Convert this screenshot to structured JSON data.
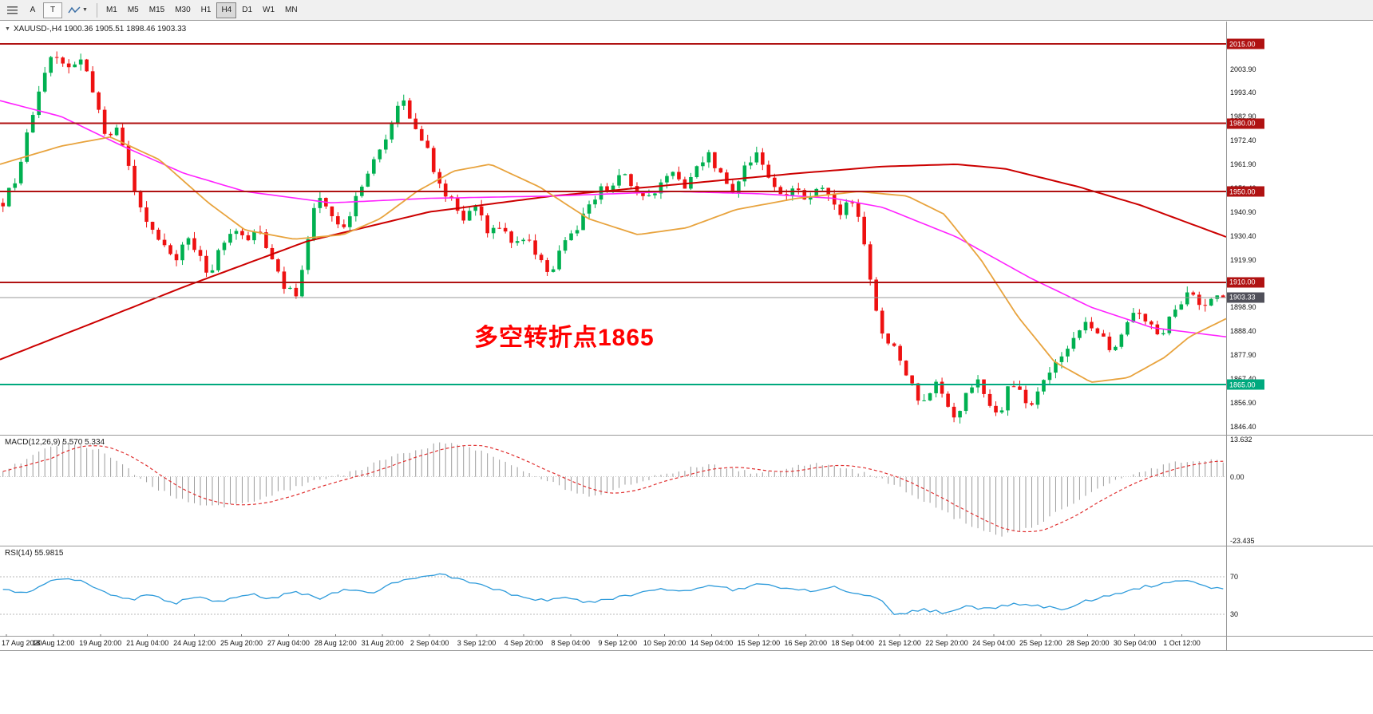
{
  "toolbar": {
    "tool_a": "A",
    "tool_t": "T",
    "timeframes": [
      "M1",
      "M5",
      "M15",
      "M30",
      "H1",
      "H4",
      "D1",
      "W1",
      "MN"
    ],
    "selected_timeframe": "H4"
  },
  "chart": {
    "title": "XAUUSD-,H4 1900.36 1905.51 1898.46 1903.33",
    "symbol_dropdown_icon": "▼",
    "annotation": {
      "text": "多空转折点1865",
      "color": "#ff0000"
    }
  },
  "chart_data": {
    "type": "candlestick",
    "symbol": "XAUUSD",
    "timeframe": "H4",
    "last_ohlc": {
      "open": 1900.36,
      "high": 1905.51,
      "low": 1898.46,
      "close": 1903.33
    },
    "ylim": [
      1843,
      2025
    ],
    "bar_count": 205,
    "up_color": "#00b050",
    "down_color": "#ee1111",
    "price_ticks": [
      "2003.90",
      "1993.40",
      "1982.90",
      "1972.40",
      "1961.90",
      "1951.40",
      "1940.90",
      "1930.40",
      "1919.90",
      "1909.40",
      "1898.90",
      "1888.40",
      "1877.90",
      "1867.40",
      "1856.90",
      "1846.40"
    ],
    "hlines": [
      {
        "price": 2015.0,
        "label": "2015.00",
        "color": "#b01212"
      },
      {
        "price": 1980.0,
        "label": "1980.00",
        "color": "#b01212"
      },
      {
        "price": 1950.0,
        "label": "1950.00",
        "color": "#b01212"
      },
      {
        "price": 1910.0,
        "label": "1910.00",
        "color": "#b01212"
      },
      {
        "price": 1865.0,
        "label": "1865.00",
        "color": "#00a97e"
      }
    ],
    "current_price": {
      "value": 1903.33,
      "label": "1903.33",
      "line_color": "#999999",
      "box_color": "#50505a"
    },
    "price_anchors": [
      [
        0,
        1945
      ],
      [
        0.01,
        1955
      ],
      [
        0.025,
        1985
      ],
      [
        0.04,
        2010
      ],
      [
        0.055,
        2005
      ],
      [
        0.065,
        2008
      ],
      [
        0.075,
        1992
      ],
      [
        0.085,
        1972
      ],
      [
        0.095,
        1978
      ],
      [
        0.105,
        1955
      ],
      [
        0.115,
        1938
      ],
      [
        0.13,
        1928
      ],
      [
        0.14,
        1918
      ],
      [
        0.15,
        1930
      ],
      [
        0.16,
        1922
      ],
      [
        0.17,
        1913
      ],
      [
        0.18,
        1928
      ],
      [
        0.19,
        1935
      ],
      [
        0.2,
        1928
      ],
      [
        0.21,
        1933
      ],
      [
        0.22,
        1920
      ],
      [
        0.23,
        1908
      ],
      [
        0.24,
        1904
      ],
      [
        0.25,
        1930
      ],
      [
        0.258,
        1950
      ],
      [
        0.268,
        1942
      ],
      [
        0.278,
        1932
      ],
      [
        0.288,
        1945
      ],
      [
        0.298,
        1958
      ],
      [
        0.308,
        1966
      ],
      [
        0.316,
        1975
      ],
      [
        0.324,
        1990
      ],
      [
        0.33,
        1988
      ],
      [
        0.338,
        1978
      ],
      [
        0.348,
        1968
      ],
      [
        0.358,
        1952
      ],
      [
        0.368,
        1945
      ],
      [
        0.378,
        1938
      ],
      [
        0.388,
        1942
      ],
      [
        0.398,
        1932
      ],
      [
        0.408,
        1935
      ],
      [
        0.418,
        1928
      ],
      [
        0.428,
        1930
      ],
      [
        0.438,
        1922
      ],
      [
        0.448,
        1912
      ],
      [
        0.458,
        1926
      ],
      [
        0.468,
        1932
      ],
      [
        0.478,
        1942
      ],
      [
        0.488,
        1950
      ],
      [
        0.498,
        1953
      ],
      [
        0.508,
        1958
      ],
      [
        0.518,
        1950
      ],
      [
        0.528,
        1946
      ],
      [
        0.538,
        1953
      ],
      [
        0.548,
        1958
      ],
      [
        0.558,
        1951
      ],
      [
        0.568,
        1962
      ],
      [
        0.578,
        1966
      ],
      [
        0.588,
        1957
      ],
      [
        0.598,
        1950
      ],
      [
        0.608,
        1960
      ],
      [
        0.618,
        1968
      ],
      [
        0.628,
        1956
      ],
      [
        0.638,
        1948
      ],
      [
        0.648,
        1952
      ],
      [
        0.658,
        1945
      ],
      [
        0.668,
        1952
      ],
      [
        0.678,
        1946
      ],
      [
        0.688,
        1940
      ],
      [
        0.695,
        1948
      ],
      [
        0.702,
        1938
      ],
      [
        0.708,
        1920
      ],
      [
        0.714,
        1900
      ],
      [
        0.72,
        1888
      ],
      [
        0.728,
        1882
      ],
      [
        0.736,
        1876
      ],
      [
        0.742,
        1868
      ],
      [
        0.748,
        1860
      ],
      [
        0.756,
        1856
      ],
      [
        0.764,
        1866
      ],
      [
        0.77,
        1860
      ],
      [
        0.776,
        1852
      ],
      [
        0.782,
        1850
      ],
      [
        0.79,
        1862
      ],
      [
        0.798,
        1868
      ],
      [
        0.804,
        1860
      ],
      [
        0.81,
        1855
      ],
      [
        0.816,
        1850
      ],
      [
        0.822,
        1862
      ],
      [
        0.828,
        1866
      ],
      [
        0.836,
        1860
      ],
      [
        0.842,
        1854
      ],
      [
        0.85,
        1863
      ],
      [
        0.86,
        1872
      ],
      [
        0.87,
        1880
      ],
      [
        0.88,
        1888
      ],
      [
        0.89,
        1893
      ],
      [
        0.9,
        1886
      ],
      [
        0.91,
        1880
      ],
      [
        0.92,
        1893
      ],
      [
        0.93,
        1899
      ],
      [
        0.94,
        1891
      ],
      [
        0.95,
        1887
      ],
      [
        0.958,
        1896
      ],
      [
        0.966,
        1902
      ],
      [
        0.974,
        1906
      ],
      [
        0.982,
        1899
      ],
      [
        0.99,
        1904
      ],
      [
        1,
        1903.3
      ]
    ],
    "overlays": [
      {
        "name": "ma-slow-red",
        "color": "#cc0000",
        "width": 2,
        "anchors": [
          [
            0,
            1876
          ],
          [
            0.08,
            1893
          ],
          [
            0.15,
            1908
          ],
          [
            0.25,
            1928
          ],
          [
            0.35,
            1941
          ],
          [
            0.45,
            1948
          ],
          [
            0.55,
            1953
          ],
          [
            0.65,
            1958
          ],
          [
            0.72,
            1961
          ],
          [
            0.78,
            1962
          ],
          [
            0.82,
            1960
          ],
          [
            0.88,
            1952
          ],
          [
            0.93,
            1944
          ],
          [
            1,
            1930
          ]
        ]
      },
      {
        "name": "ma-mid-magenta",
        "color": "#ff22ff",
        "width": 1.6,
        "anchors": [
          [
            0,
            1990
          ],
          [
            0.05,
            1983
          ],
          [
            0.1,
            1970
          ],
          [
            0.15,
            1958
          ],
          [
            0.2,
            1950
          ],
          [
            0.27,
            1945
          ],
          [
            0.35,
            1947
          ],
          [
            0.45,
            1948
          ],
          [
            0.55,
            1950
          ],
          [
            0.62,
            1949
          ],
          [
            0.68,
            1947
          ],
          [
            0.72,
            1943
          ],
          [
            0.78,
            1930
          ],
          [
            0.84,
            1912
          ],
          [
            0.89,
            1899
          ],
          [
            0.94,
            1890
          ],
          [
            1,
            1886
          ]
        ]
      },
      {
        "name": "ma-fast-orange",
        "color": "#e8a33d",
        "width": 1.8,
        "anchors": [
          [
            0,
            1962
          ],
          [
            0.05,
            1970
          ],
          [
            0.09,
            1974
          ],
          [
            0.13,
            1964
          ],
          [
            0.17,
            1945
          ],
          [
            0.2,
            1933
          ],
          [
            0.24,
            1929
          ],
          [
            0.28,
            1931
          ],
          [
            0.31,
            1938
          ],
          [
            0.34,
            1950
          ],
          [
            0.37,
            1959
          ],
          [
            0.4,
            1962
          ],
          [
            0.44,
            1952
          ],
          [
            0.48,
            1938
          ],
          [
            0.52,
            1931
          ],
          [
            0.56,
            1934
          ],
          [
            0.6,
            1942
          ],
          [
            0.65,
            1947
          ],
          [
            0.7,
            1950
          ],
          [
            0.74,
            1948
          ],
          [
            0.77,
            1940
          ],
          [
            0.8,
            1920
          ],
          [
            0.83,
            1895
          ],
          [
            0.86,
            1875
          ],
          [
            0.89,
            1866
          ],
          [
            0.92,
            1868
          ],
          [
            0.95,
            1877
          ],
          [
            0.97,
            1886
          ],
          [
            1,
            1894
          ]
        ]
      }
    ],
    "x_labels": [
      "17 Aug 2020",
      "18 Aug 12:00",
      "19 Aug 20:00",
      "21 Aug 04:00",
      "24 Aug 12:00",
      "25 Aug 20:00",
      "27 Aug 04:00",
      "28 Aug 12:00",
      "31 Aug 20:00",
      "2 Sep 04:00",
      "3 Sep 12:00",
      "4 Sep 20:00",
      "8 Sep 04:00",
      "9 Sep 12:00",
      "10 Sep 20:00",
      "14 Sep 04:00",
      "15 Sep 12:00",
      "16 Sep 20:00",
      "18 Sep 04:00",
      "21 Sep 12:00",
      "22 Sep 20:00",
      "24 Sep 04:00",
      "25 Sep 12:00",
      "28 Sep 20:00",
      "30 Sep 04:00",
      "1 Oct 12:00"
    ]
  },
  "indicators": {
    "macd": {
      "label": "MACD(12,26,9) 5.570 5.334",
      "scale": {
        "max": "13.632",
        "zero": "0.00",
        "min": "-23.435"
      },
      "range": [
        -23.435,
        13.632
      ],
      "hist_color": "#9b9b9b",
      "signal_color": "#e03030",
      "anchors": [
        [
          0,
          2
        ],
        [
          0.03,
          9
        ],
        [
          0.05,
          13
        ],
        [
          0.08,
          10
        ],
        [
          0.1,
          4
        ],
        [
          0.12,
          -3
        ],
        [
          0.15,
          -9
        ],
        [
          0.18,
          -11
        ],
        [
          0.21,
          -8
        ],
        [
          0.24,
          -4
        ],
        [
          0.26,
          -1
        ],
        [
          0.28,
          1
        ],
        [
          0.3,
          4
        ],
        [
          0.33,
          9
        ],
        [
          0.36,
          12.5
        ],
        [
          0.38,
          11
        ],
        [
          0.4,
          8
        ],
        [
          0.42,
          4
        ],
        [
          0.44,
          0
        ],
        [
          0.46,
          -4
        ],
        [
          0.48,
          -7
        ],
        [
          0.5,
          -5
        ],
        [
          0.52,
          -2
        ],
        [
          0.54,
          1
        ],
        [
          0.56,
          3
        ],
        [
          0.58,
          4
        ],
        [
          0.6,
          3
        ],
        [
          0.62,
          1
        ],
        [
          0.64,
          3
        ],
        [
          0.66,
          5
        ],
        [
          0.68,
          4
        ],
        [
          0.7,
          2
        ],
        [
          0.72,
          -1
        ],
        [
          0.74,
          -5
        ],
        [
          0.76,
          -10
        ],
        [
          0.78,
          -15
        ],
        [
          0.8,
          -19
        ],
        [
          0.82,
          -21.5
        ],
        [
          0.84,
          -19
        ],
        [
          0.86,
          -14
        ],
        [
          0.88,
          -9
        ],
        [
          0.9,
          -4
        ],
        [
          0.92,
          0
        ],
        [
          0.94,
          3
        ],
        [
          0.96,
          5
        ],
        [
          0.98,
          6.2
        ],
        [
          1,
          5.57
        ]
      ]
    },
    "rsi": {
      "label": "RSI(14) 55.9815",
      "levels": [
        "70",
        "30"
      ],
      "level_values": [
        70,
        30
      ],
      "color": "#2e9bdb",
      "anchors": [
        [
          0,
          58
        ],
        [
          0.02,
          52
        ],
        [
          0.04,
          65
        ],
        [
          0.06,
          68
        ],
        [
          0.08,
          55
        ],
        [
          0.1,
          45
        ],
        [
          0.12,
          50
        ],
        [
          0.14,
          42
        ],
        [
          0.16,
          48
        ],
        [
          0.18,
          44
        ],
        [
          0.2,
          52
        ],
        [
          0.22,
          47
        ],
        [
          0.24,
          55
        ],
        [
          0.26,
          45
        ],
        [
          0.28,
          58
        ],
        [
          0.3,
          52
        ],
        [
          0.32,
          64
        ],
        [
          0.34,
          68
        ],
        [
          0.36,
          72
        ],
        [
          0.38,
          65
        ],
        [
          0.4,
          58
        ],
        [
          0.42,
          50
        ],
        [
          0.44,
          45
        ],
        [
          0.46,
          48
        ],
        [
          0.48,
          42
        ],
        [
          0.5,
          47
        ],
        [
          0.52,
          52
        ],
        [
          0.54,
          58
        ],
        [
          0.56,
          55
        ],
        [
          0.58,
          60
        ],
        [
          0.6,
          56
        ],
        [
          0.62,
          62
        ],
        [
          0.64,
          58
        ],
        [
          0.66,
          55
        ],
        [
          0.68,
          60
        ],
        [
          0.7,
          52
        ],
        [
          0.72,
          45
        ],
        [
          0.73,
          28
        ],
        [
          0.75,
          35
        ],
        [
          0.77,
          32
        ],
        [
          0.79,
          38
        ],
        [
          0.81,
          35
        ],
        [
          0.83,
          42
        ],
        [
          0.85,
          38
        ],
        [
          0.87,
          36
        ],
        [
          0.89,
          45
        ],
        [
          0.91,
          52
        ],
        [
          0.93,
          58
        ],
        [
          0.95,
          62
        ],
        [
          0.97,
          66
        ],
        [
          0.985,
          60
        ],
        [
          1,
          56
        ]
      ]
    }
  }
}
